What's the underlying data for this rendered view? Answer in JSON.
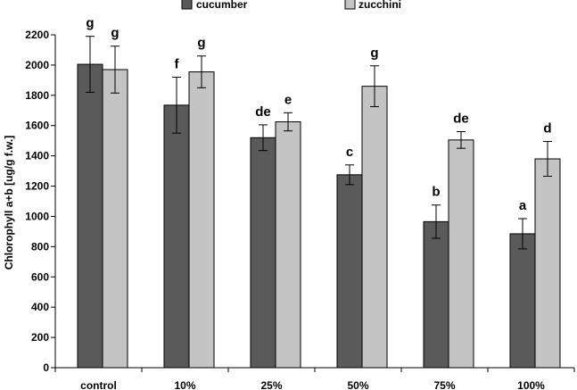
{
  "chart_data": {
    "type": "bar",
    "title": "",
    "xlabel": "",
    "ylabel": "Chlorophyll a+b [ug/g f.w.]",
    "ylim": [
      0,
      2200
    ],
    "yticks": [
      0,
      200,
      400,
      600,
      800,
      1000,
      1200,
      1400,
      1600,
      1800,
      2000,
      2200
    ],
    "categories": [
      "control",
      "10%",
      "25%",
      "50%",
      "75%",
      "100%"
    ],
    "legend_position": "top",
    "series": [
      {
        "name": "cucumber",
        "color": "#5a5a5a",
        "values": [
          2005,
          1735,
          1520,
          1275,
          965,
          885
        ],
        "errors": [
          185,
          185,
          85,
          65,
          110,
          100
        ],
        "labels": [
          "g",
          "f",
          "de",
          "c",
          "b",
          "a"
        ]
      },
      {
        "name": "zucchini",
        "color": "#c4c4c4",
        "values": [
          1970,
          1955,
          1625,
          1860,
          1505,
          1380
        ],
        "errors": [
          155,
          105,
          60,
          135,
          55,
          115
        ],
        "labels": [
          "g",
          "g",
          "e",
          "g",
          "de",
          "d"
        ]
      }
    ]
  }
}
